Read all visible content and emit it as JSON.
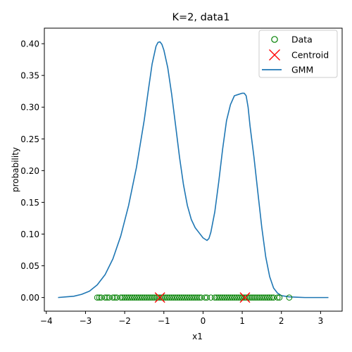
{
  "chart_data": {
    "type": "line",
    "title": "K=2, data1",
    "xlabel": "x1",
    "ylabel": "probability",
    "xlim": [
      -4.05,
      3.55
    ],
    "ylim": [
      -0.0215,
      0.4245
    ],
    "xticks": [
      -4,
      -3,
      -2,
      -1,
      0,
      1,
      2,
      3
    ],
    "yticks": [
      0.0,
      0.05,
      0.1,
      0.15,
      0.2,
      0.25,
      0.3,
      0.35,
      0.4
    ],
    "xtick_labels": [
      "−4",
      "−3",
      "−2",
      "−1",
      "0",
      "1",
      "2",
      "3"
    ],
    "ytick_labels": [
      "0.00",
      "0.05",
      "0.10",
      "0.15",
      "0.20",
      "0.25",
      "0.30",
      "0.35",
      "0.40"
    ],
    "grid": false,
    "legend_position": "top-right",
    "legend": [
      {
        "label": "Data",
        "marker": "open-circle",
        "color": "#008000"
      },
      {
        "label": "Centroid",
        "marker": "x",
        "color": "#ff0000"
      },
      {
        "label": "GMM",
        "marker": "line",
        "color": "#1f77b4"
      }
    ],
    "series": [
      {
        "name": "GMM",
        "style": "line",
        "color": "#1f77b4",
        "x": [
          -3.7,
          -3.5,
          -3.3,
          -3.1,
          -2.9,
          -2.7,
          -2.5,
          -2.3,
          -2.1,
          -1.9,
          -1.7,
          -1.5,
          -1.4,
          -1.3,
          -1.2,
          -1.15,
          -1.1,
          -1.05,
          -1.0,
          -0.9,
          -0.8,
          -0.7,
          -0.6,
          -0.5,
          -0.4,
          -0.3,
          -0.2,
          -0.1,
          0.0,
          0.1,
          0.15,
          0.2,
          0.3,
          0.4,
          0.5,
          0.6,
          0.7,
          0.8,
          0.9,
          1.0,
          1.05,
          1.1,
          1.15,
          1.2,
          1.3,
          1.4,
          1.5,
          1.6,
          1.7,
          1.8,
          1.9,
          2.0,
          2.2,
          2.4,
          2.6,
          2.8,
          3.0,
          3.2
        ],
        "y": [
          0.0,
          0.001,
          0.002,
          0.005,
          0.01,
          0.02,
          0.036,
          0.061,
          0.097,
          0.145,
          0.205,
          0.28,
          0.325,
          0.368,
          0.396,
          0.402,
          0.403,
          0.399,
          0.39,
          0.362,
          0.32,
          0.271,
          0.221,
          0.178,
          0.145,
          0.123,
          0.11,
          0.102,
          0.094,
          0.09,
          0.093,
          0.103,
          0.135,
          0.182,
          0.234,
          0.279,
          0.304,
          0.318,
          0.32,
          0.322,
          0.322,
          0.318,
          0.3,
          0.27,
          0.221,
          0.165,
          0.11,
          0.064,
          0.033,
          0.015,
          0.007,
          0.003,
          0.001,
          0.0005,
          0.0,
          0.0,
          0.0,
          0.0
        ]
      },
      {
        "name": "Data",
        "style": "scatter",
        "marker": "open-circle",
        "color": "#008000",
        "x": [
          -2.7,
          -2.65,
          -2.6,
          -2.5,
          -2.45,
          -2.4,
          -2.3,
          -2.25,
          -2.2,
          -2.1,
          -2.05,
          -2.0,
          -1.95,
          -1.9,
          -1.85,
          -1.8,
          -1.75,
          -1.7,
          -1.65,
          -1.6,
          -1.55,
          -1.5,
          -1.45,
          -1.4,
          -1.35,
          -1.3,
          -1.25,
          -1.2,
          -1.15,
          -1.1,
          -1.05,
          -1.0,
          -0.95,
          -0.9,
          -0.85,
          -0.8,
          -0.75,
          -0.7,
          -0.65,
          -0.6,
          -0.55,
          -0.5,
          -0.45,
          -0.4,
          -0.35,
          -0.3,
          -0.25,
          -0.2,
          -0.15,
          -0.1,
          -0.05,
          0.05,
          0.1,
          0.2,
          0.3,
          0.35,
          0.4,
          0.45,
          0.5,
          0.55,
          0.6,
          0.65,
          0.7,
          0.75,
          0.8,
          0.85,
          0.9,
          0.95,
          1.0,
          1.05,
          1.1,
          1.15,
          1.2,
          1.25,
          1.3,
          1.35,
          1.4,
          1.45,
          1.5,
          1.55,
          1.6,
          1.65,
          1.7,
          1.75,
          1.8,
          1.9,
          1.95,
          2.2
        ],
        "y": [
          0.0,
          0.0,
          0.0,
          0.0,
          0.0,
          0.0,
          0.0,
          0.0,
          0.0,
          0.0,
          0.0,
          0.0,
          0.0,
          0.0,
          0.0,
          0.0,
          0.0,
          0.0,
          0.0,
          0.0,
          0.0,
          0.0,
          0.0,
          0.0,
          0.0,
          0.0,
          0.0,
          0.0,
          0.0,
          0.0,
          0.0,
          0.0,
          0.0,
          0.0,
          0.0,
          0.0,
          0.0,
          0.0,
          0.0,
          0.0,
          0.0,
          0.0,
          0.0,
          0.0,
          0.0,
          0.0,
          0.0,
          0.0,
          0.0,
          0.0,
          0.0,
          0.0,
          0.0,
          0.0,
          0.0,
          0.0,
          0.0,
          0.0,
          0.0,
          0.0,
          0.0,
          0.0,
          0.0,
          0.0,
          0.0,
          0.0,
          0.0,
          0.0,
          0.0,
          0.0,
          0.0,
          0.0,
          0.0,
          0.0,
          0.0,
          0.0,
          0.0,
          0.0,
          0.0,
          0.0,
          0.0,
          0.0,
          0.0,
          0.0,
          0.0,
          0.0,
          0.0,
          0.0
        ]
      },
      {
        "name": "Centroid",
        "style": "scatter",
        "marker": "x",
        "color": "#ff0000",
        "x": [
          -1.1,
          1.07
        ],
        "y": [
          0.0,
          0.0
        ]
      }
    ]
  }
}
